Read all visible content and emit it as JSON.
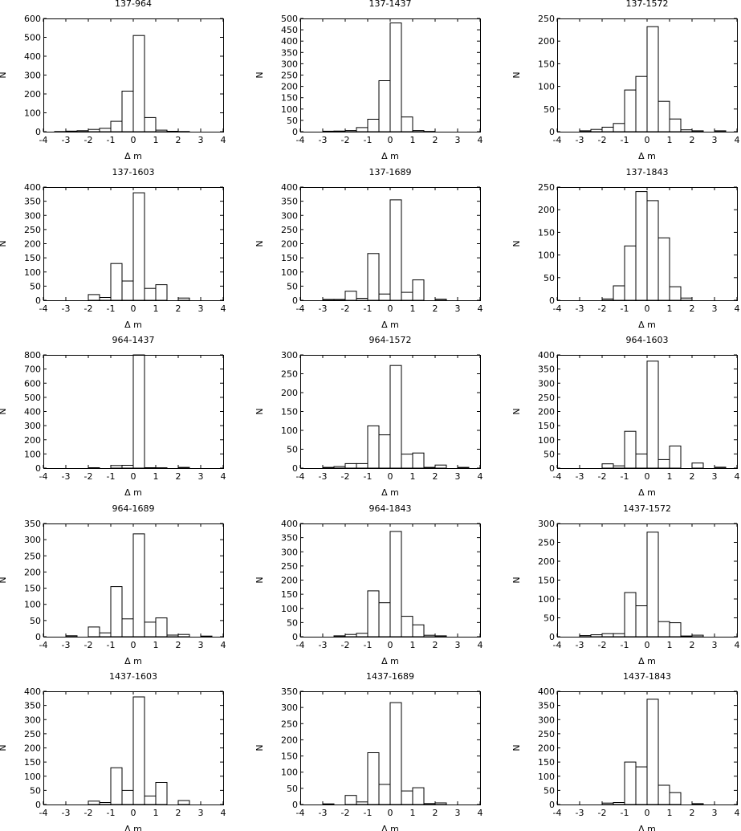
{
  "figure": {
    "xlabel": "Δ m",
    "ylabel": "N",
    "colors": {
      "bar_fill": "#ffffff",
      "stroke": "#000000",
      "background": "#ffffff"
    }
  },
  "chart_data": [
    {
      "type": "bar",
      "title": "137-964",
      "xlabel": "Δ m",
      "ylabel": "N",
      "xlim": [
        -4,
        4
      ],
      "ylim": [
        0,
        600
      ],
      "xticks": [
        -4,
        -3,
        -2,
        -1,
        0,
        1,
        2,
        3,
        4
      ],
      "yticks": [
        0,
        100,
        200,
        300,
        400,
        500,
        600
      ],
      "bin_width": 0.5,
      "bins": [
        [
          -3.5,
          1
        ],
        [
          -3.0,
          3
        ],
        [
          -2.5,
          5
        ],
        [
          -2.0,
          12
        ],
        [
          -1.5,
          18
        ],
        [
          -1.0,
          55
        ],
        [
          -0.5,
          215
        ],
        [
          0.0,
          510
        ],
        [
          0.5,
          75
        ],
        [
          1.0,
          8
        ],
        [
          1.5,
          2
        ],
        [
          2.0,
          1
        ]
      ]
    },
    {
      "type": "bar",
      "title": "137-1437",
      "xlabel": "Δ m",
      "ylabel": "N",
      "xlim": [
        -4,
        4
      ],
      "ylim": [
        0,
        500
      ],
      "xticks": [
        -4,
        -3,
        -2,
        -1,
        0,
        1,
        2,
        3,
        4
      ],
      "yticks": [
        0,
        50,
        100,
        150,
        200,
        250,
        300,
        350,
        400,
        450,
        500
      ],
      "bin_width": 0.5,
      "bins": [
        [
          -3.0,
          2
        ],
        [
          -2.5,
          3
        ],
        [
          -2.0,
          5
        ],
        [
          -1.5,
          18
        ],
        [
          -1.0,
          55
        ],
        [
          -0.5,
          225
        ],
        [
          0.0,
          480
        ],
        [
          0.5,
          65
        ],
        [
          1.0,
          5
        ],
        [
          1.5,
          1
        ]
      ]
    },
    {
      "type": "bar",
      "title": "137-1572",
      "xlabel": "Δ m",
      "ylabel": "N",
      "xlim": [
        -4,
        4
      ],
      "ylim": [
        0,
        250
      ],
      "xticks": [
        -4,
        -3,
        -2,
        -1,
        0,
        1,
        2,
        3,
        4
      ],
      "yticks": [
        0,
        50,
        100,
        150,
        200,
        250
      ],
      "bin_width": 0.5,
      "bins": [
        [
          -3.0,
          2
        ],
        [
          -2.5,
          5
        ],
        [
          -2.0,
          10
        ],
        [
          -1.5,
          18
        ],
        [
          -1.0,
          92
        ],
        [
          -0.5,
          122
        ],
        [
          0.0,
          232
        ],
        [
          0.5,
          67
        ],
        [
          1.0,
          28
        ],
        [
          1.5,
          4
        ],
        [
          2.0,
          2
        ],
        [
          3.0,
          2
        ]
      ]
    },
    {
      "type": "bar",
      "title": "137-1603",
      "xlabel": "Δ m",
      "ylabel": "N",
      "xlim": [
        -4,
        4
      ],
      "ylim": [
        0,
        400
      ],
      "xticks": [
        -4,
        -3,
        -2,
        -1,
        0,
        1,
        2,
        3,
        4
      ],
      "yticks": [
        0,
        50,
        100,
        150,
        200,
        250,
        300,
        350,
        400
      ],
      "bin_width": 0.5,
      "bins": [
        [
          -2.0,
          20
        ],
        [
          -1.5,
          10
        ],
        [
          -1.0,
          130
        ],
        [
          -0.5,
          68
        ],
        [
          0.0,
          380
        ],
        [
          0.5,
          42
        ],
        [
          1.0,
          55
        ],
        [
          2.0,
          8
        ]
      ]
    },
    {
      "type": "bar",
      "title": "137-1689",
      "xlabel": "Δ m",
      "ylabel": "N",
      "xlim": [
        -4,
        4
      ],
      "ylim": [
        0,
        400
      ],
      "xticks": [
        -4,
        -3,
        -2,
        -1,
        0,
        1,
        2,
        3,
        4
      ],
      "yticks": [
        0,
        50,
        100,
        150,
        200,
        250,
        300,
        350,
        400
      ],
      "bin_width": 0.5,
      "bins": [
        [
          -3.0,
          3
        ],
        [
          -2.5,
          3
        ],
        [
          -2.0,
          32
        ],
        [
          -1.5,
          7
        ],
        [
          -1.0,
          165
        ],
        [
          -0.5,
          22
        ],
        [
          0.0,
          355
        ],
        [
          0.5,
          28
        ],
        [
          1.0,
          72
        ],
        [
          2.0,
          4
        ]
      ]
    },
    {
      "type": "bar",
      "title": "137-1843",
      "xlabel": "Δ m",
      "ylabel": "N",
      "xlim": [
        -4,
        4
      ],
      "ylim": [
        0,
        250
      ],
      "xticks": [
        -4,
        -3,
        -2,
        -1,
        0,
        1,
        2,
        3,
        4
      ],
      "yticks": [
        0,
        50,
        100,
        150,
        200,
        250
      ],
      "bin_width": 0.5,
      "bins": [
        [
          -2.0,
          3
        ],
        [
          -1.5,
          32
        ],
        [
          -1.0,
          120
        ],
        [
          -0.5,
          240
        ],
        [
          0.0,
          220
        ],
        [
          0.5,
          138
        ],
        [
          1.0,
          30
        ],
        [
          1.5,
          5
        ]
      ]
    },
    {
      "type": "bar",
      "title": "964-1437",
      "xlabel": "Δ m",
      "ylabel": "N",
      "xlim": [
        -4,
        4
      ],
      "ylim": [
        0,
        800
      ],
      "xticks": [
        -4,
        -3,
        -2,
        -1,
        0,
        1,
        2,
        3,
        4
      ],
      "yticks": [
        0,
        100,
        200,
        300,
        400,
        500,
        600,
        700,
        800
      ],
      "bin_width": 0.5,
      "bins": [
        [
          -2.0,
          3
        ],
        [
          -1.0,
          18
        ],
        [
          -0.5,
          20
        ],
        [
          0.0,
          800
        ],
        [
          0.5,
          3
        ],
        [
          1.0,
          2
        ],
        [
          2.0,
          5
        ]
      ]
    },
    {
      "type": "bar",
      "title": "964-1572",
      "xlabel": "Δ m",
      "ylabel": "N",
      "xlim": [
        -4,
        4
      ],
      "ylim": [
        0,
        300
      ],
      "xticks": [
        -4,
        -3,
        -2,
        -1,
        0,
        1,
        2,
        3,
        4
      ],
      "yticks": [
        0,
        50,
        100,
        150,
        200,
        250,
        300
      ],
      "bin_width": 0.5,
      "bins": [
        [
          -3.0,
          2
        ],
        [
          -2.5,
          4
        ],
        [
          -2.0,
          12
        ],
        [
          -1.5,
          12
        ],
        [
          -1.0,
          112
        ],
        [
          -0.5,
          88
        ],
        [
          0.0,
          272
        ],
        [
          0.5,
          37
        ],
        [
          1.0,
          40
        ],
        [
          1.5,
          2
        ],
        [
          2.0,
          8
        ],
        [
          3.0,
          2
        ]
      ]
    },
    {
      "type": "bar",
      "title": "964-1603",
      "xlabel": "Δ m",
      "ylabel": "N",
      "xlim": [
        -4,
        4
      ],
      "ylim": [
        0,
        400
      ],
      "xticks": [
        -4,
        -3,
        -2,
        -1,
        0,
        1,
        2,
        3,
        4
      ],
      "yticks": [
        0,
        50,
        100,
        150,
        200,
        250,
        300,
        350,
        400
      ],
      "bin_width": 0.5,
      "bins": [
        [
          -2.0,
          15
        ],
        [
          -1.5,
          8
        ],
        [
          -1.0,
          130
        ],
        [
          -0.5,
          50
        ],
        [
          0.0,
          378
        ],
        [
          0.5,
          30
        ],
        [
          1.0,
          78
        ],
        [
          2.0,
          18
        ],
        [
          3.0,
          3
        ]
      ]
    },
    {
      "type": "bar",
      "title": "964-1689",
      "xlabel": "Δ m",
      "ylabel": "N",
      "xlim": [
        -4,
        4
      ],
      "ylim": [
        0,
        350
      ],
      "xticks": [
        -4,
        -3,
        -2,
        -1,
        0,
        1,
        2,
        3,
        4
      ],
      "yticks": [
        0,
        50,
        100,
        150,
        200,
        250,
        300,
        350
      ],
      "bin_width": 0.5,
      "bins": [
        [
          -3.0,
          3
        ],
        [
          -2.0,
          30
        ],
        [
          -1.5,
          12
        ],
        [
          -1.0,
          155
        ],
        [
          -0.5,
          55
        ],
        [
          0.0,
          318
        ],
        [
          0.5,
          45
        ],
        [
          1.0,
          58
        ],
        [
          1.5,
          5
        ],
        [
          2.0,
          7
        ],
        [
          3.0,
          2
        ]
      ]
    },
    {
      "type": "bar",
      "title": "964-1843",
      "xlabel": "Δ m",
      "ylabel": "N",
      "xlim": [
        -4,
        4
      ],
      "ylim": [
        0,
        400
      ],
      "xticks": [
        -4,
        -3,
        -2,
        -1,
        0,
        1,
        2,
        3,
        4
      ],
      "yticks": [
        0,
        50,
        100,
        150,
        200,
        250,
        300,
        350,
        400
      ],
      "bin_width": 0.5,
      "bins": [
        [
          -2.5,
          3
        ],
        [
          -2.0,
          8
        ],
        [
          -1.5,
          12
        ],
        [
          -1.0,
          162
        ],
        [
          -0.5,
          120
        ],
        [
          0.0,
          372
        ],
        [
          0.5,
          72
        ],
        [
          1.0,
          42
        ],
        [
          1.5,
          5
        ],
        [
          2.0,
          3
        ]
      ]
    },
    {
      "type": "bar",
      "title": "1437-1572",
      "xlabel": "Δ m",
      "ylabel": "N",
      "xlim": [
        -4,
        4
      ],
      "ylim": [
        0,
        300
      ],
      "xticks": [
        -4,
        -3,
        -2,
        -1,
        0,
        1,
        2,
        3,
        4
      ],
      "yticks": [
        0,
        50,
        100,
        150,
        200,
        250,
        300
      ],
      "bin_width": 0.5,
      "bins": [
        [
          -3.0,
          3
        ],
        [
          -2.5,
          5
        ],
        [
          -2.0,
          8
        ],
        [
          -1.5,
          8
        ],
        [
          -1.0,
          117
        ],
        [
          -0.5,
          82
        ],
        [
          0.0,
          277
        ],
        [
          0.5,
          40
        ],
        [
          1.0,
          37
        ],
        [
          1.5,
          2
        ],
        [
          2.0,
          4
        ]
      ]
    },
    {
      "type": "bar",
      "title": "1437-1603",
      "xlabel": "Δ m",
      "ylabel": "N",
      "xlim": [
        -4,
        4
      ],
      "ylim": [
        0,
        400
      ],
      "xticks": [
        -4,
        -3,
        -2,
        -1,
        0,
        1,
        2,
        3,
        4
      ],
      "yticks": [
        0,
        50,
        100,
        150,
        200,
        250,
        300,
        350,
        400
      ],
      "bin_width": 0.5,
      "bins": [
        [
          -2.0,
          12
        ],
        [
          -1.5,
          7
        ],
        [
          -1.0,
          130
        ],
        [
          -0.5,
          50
        ],
        [
          0.0,
          380
        ],
        [
          0.5,
          30
        ],
        [
          1.0,
          78
        ],
        [
          2.0,
          14
        ]
      ]
    },
    {
      "type": "bar",
      "title": "1437-1689",
      "xlabel": "Δ m",
      "ylabel": "N",
      "xlim": [
        -4,
        4
      ],
      "ylim": [
        0,
        350
      ],
      "xticks": [
        -4,
        -3,
        -2,
        -1,
        0,
        1,
        2,
        3,
        4
      ],
      "yticks": [
        0,
        50,
        100,
        150,
        200,
        250,
        300,
        350
      ],
      "bin_width": 0.5,
      "bins": [
        [
          -3.0,
          2
        ],
        [
          -2.0,
          28
        ],
        [
          -1.5,
          8
        ],
        [
          -1.0,
          160
        ],
        [
          -0.5,
          62
        ],
        [
          0.0,
          315
        ],
        [
          0.5,
          42
        ],
        [
          1.0,
          52
        ],
        [
          1.5,
          3
        ],
        [
          2.0,
          5
        ]
      ]
    },
    {
      "type": "bar",
      "title": "1437-1843",
      "xlabel": "Δ m",
      "ylabel": "N",
      "xlim": [
        -4,
        4
      ],
      "ylim": [
        0,
        400
      ],
      "xticks": [
        -4,
        -3,
        -2,
        -1,
        0,
        1,
        2,
        3,
        4
      ],
      "yticks": [
        0,
        50,
        100,
        150,
        200,
        250,
        300,
        350,
        400
      ],
      "bin_width": 0.5,
      "bins": [
        [
          -2.0,
          5
        ],
        [
          -1.5,
          7
        ],
        [
          -1.0,
          150
        ],
        [
          -0.5,
          133
        ],
        [
          0.0,
          372
        ],
        [
          0.5,
          68
        ],
        [
          1.0,
          42
        ],
        [
          2.0,
          3
        ]
      ]
    }
  ]
}
